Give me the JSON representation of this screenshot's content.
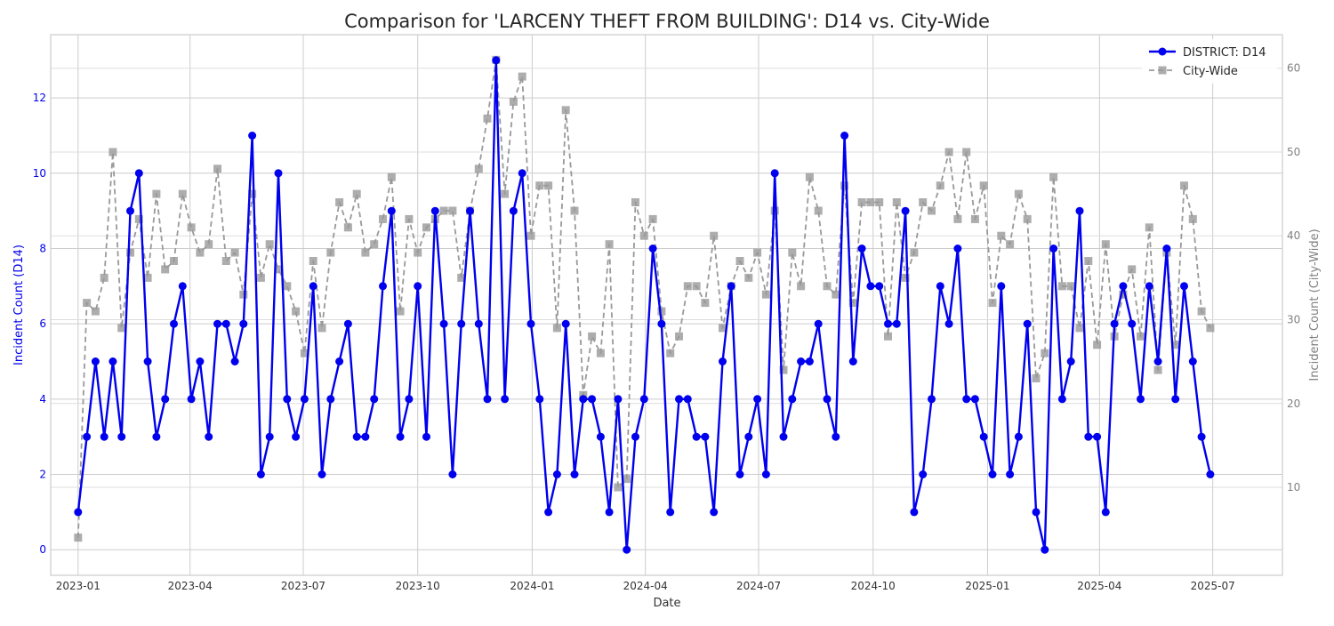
{
  "chart_data": {
    "type": "line",
    "title": "Comparison for 'LARCENY THEFT FROM BUILDING': D14 vs. City-Wide",
    "xlabel": "Date",
    "ylabel_left": "Incident Count (D14)",
    "ylabel_right": "Incident Count (City-Wide)",
    "x_range": [
      "2022-12-10",
      "2025-08-26"
    ],
    "x_ticks": [
      "2023-01",
      "2023-04",
      "2023-07",
      "2023-10",
      "2024-01",
      "2024-04",
      "2024-07",
      "2024-10",
      "2025-01",
      "2025-04",
      "2025-07"
    ],
    "ylim_left": [
      -0.68,
      13.68
    ],
    "ylim_right": [
      -0.5,
      64
    ],
    "yticks_left": [
      0,
      2,
      4,
      6,
      8,
      10,
      12
    ],
    "yticks_right": [
      10,
      20,
      30,
      40,
      50,
      60
    ],
    "grid": true,
    "legend_position": "top-right",
    "series": [
      {
        "name": "DISTRICT: D14",
        "axis": "left",
        "color": "#0000ee",
        "marker": "circle",
        "linestyle": "solid",
        "values": [
          1,
          3,
          5,
          3,
          5,
          3,
          9,
          10,
          5,
          3,
          4,
          6,
          7,
          4,
          5,
          3,
          6,
          6,
          5,
          6,
          11,
          2,
          3,
          10,
          4,
          3,
          4,
          7,
          2,
          4,
          5,
          6,
          3,
          3,
          4,
          7,
          9,
          3,
          4,
          7,
          3,
          9,
          6,
          2,
          6,
          9,
          6,
          4,
          13,
          4,
          9,
          10,
          6,
          4,
          1,
          2,
          6,
          2,
          4,
          4,
          3,
          1,
          4,
          0,
          3,
          4,
          8,
          6,
          1,
          4,
          4,
          3,
          3,
          1,
          5,
          7,
          2,
          3,
          4,
          2,
          10,
          3,
          4,
          5,
          5,
          6,
          4,
          3,
          11,
          5,
          8,
          7,
          7,
          6,
          6,
          9,
          1,
          2,
          4,
          7,
          6,
          8,
          4,
          4,
          3,
          2,
          7,
          2,
          3,
          6,
          1,
          0,
          8,
          4,
          5,
          9,
          3,
          3,
          1,
          6,
          7,
          6,
          4,
          7,
          5,
          8,
          4,
          7,
          5,
          3,
          2
        ]
      },
      {
        "name": "City-Wide",
        "axis": "right",
        "color": "#999999",
        "marker": "square",
        "linestyle": "dashed",
        "values": [
          4,
          32,
          31,
          35,
          50,
          29,
          38,
          42,
          35,
          45,
          36,
          37,
          45,
          41,
          38,
          39,
          48,
          37,
          38,
          33,
          45,
          35,
          39,
          36,
          34,
          31,
          26,
          37,
          29,
          38,
          44,
          41,
          45,
          38,
          39,
          42,
          47,
          31,
          42,
          38,
          41,
          42,
          43,
          43,
          35,
          43,
          48,
          54,
          61,
          45,
          56,
          59,
          40,
          46,
          46,
          29,
          55,
          43,
          21,
          28,
          26,
          39,
          10,
          11,
          44,
          40,
          42,
          31,
          26,
          28,
          34,
          34,
          32,
          40,
          29,
          34,
          37,
          35,
          38,
          33,
          43,
          24,
          38,
          34,
          47,
          43,
          34,
          33,
          46,
          32,
          44,
          44,
          44,
          28,
          44,
          35,
          38,
          44,
          43,
          46,
          50,
          42,
          50,
          42,
          46,
          32,
          40,
          39,
          45,
          42,
          23,
          26,
          47,
          34,
          34,
          29,
          37,
          27,
          39,
          28,
          33,
          36,
          28,
          41,
          24,
          38,
          27,
          46,
          42,
          31,
          29
        ]
      }
    ]
  }
}
